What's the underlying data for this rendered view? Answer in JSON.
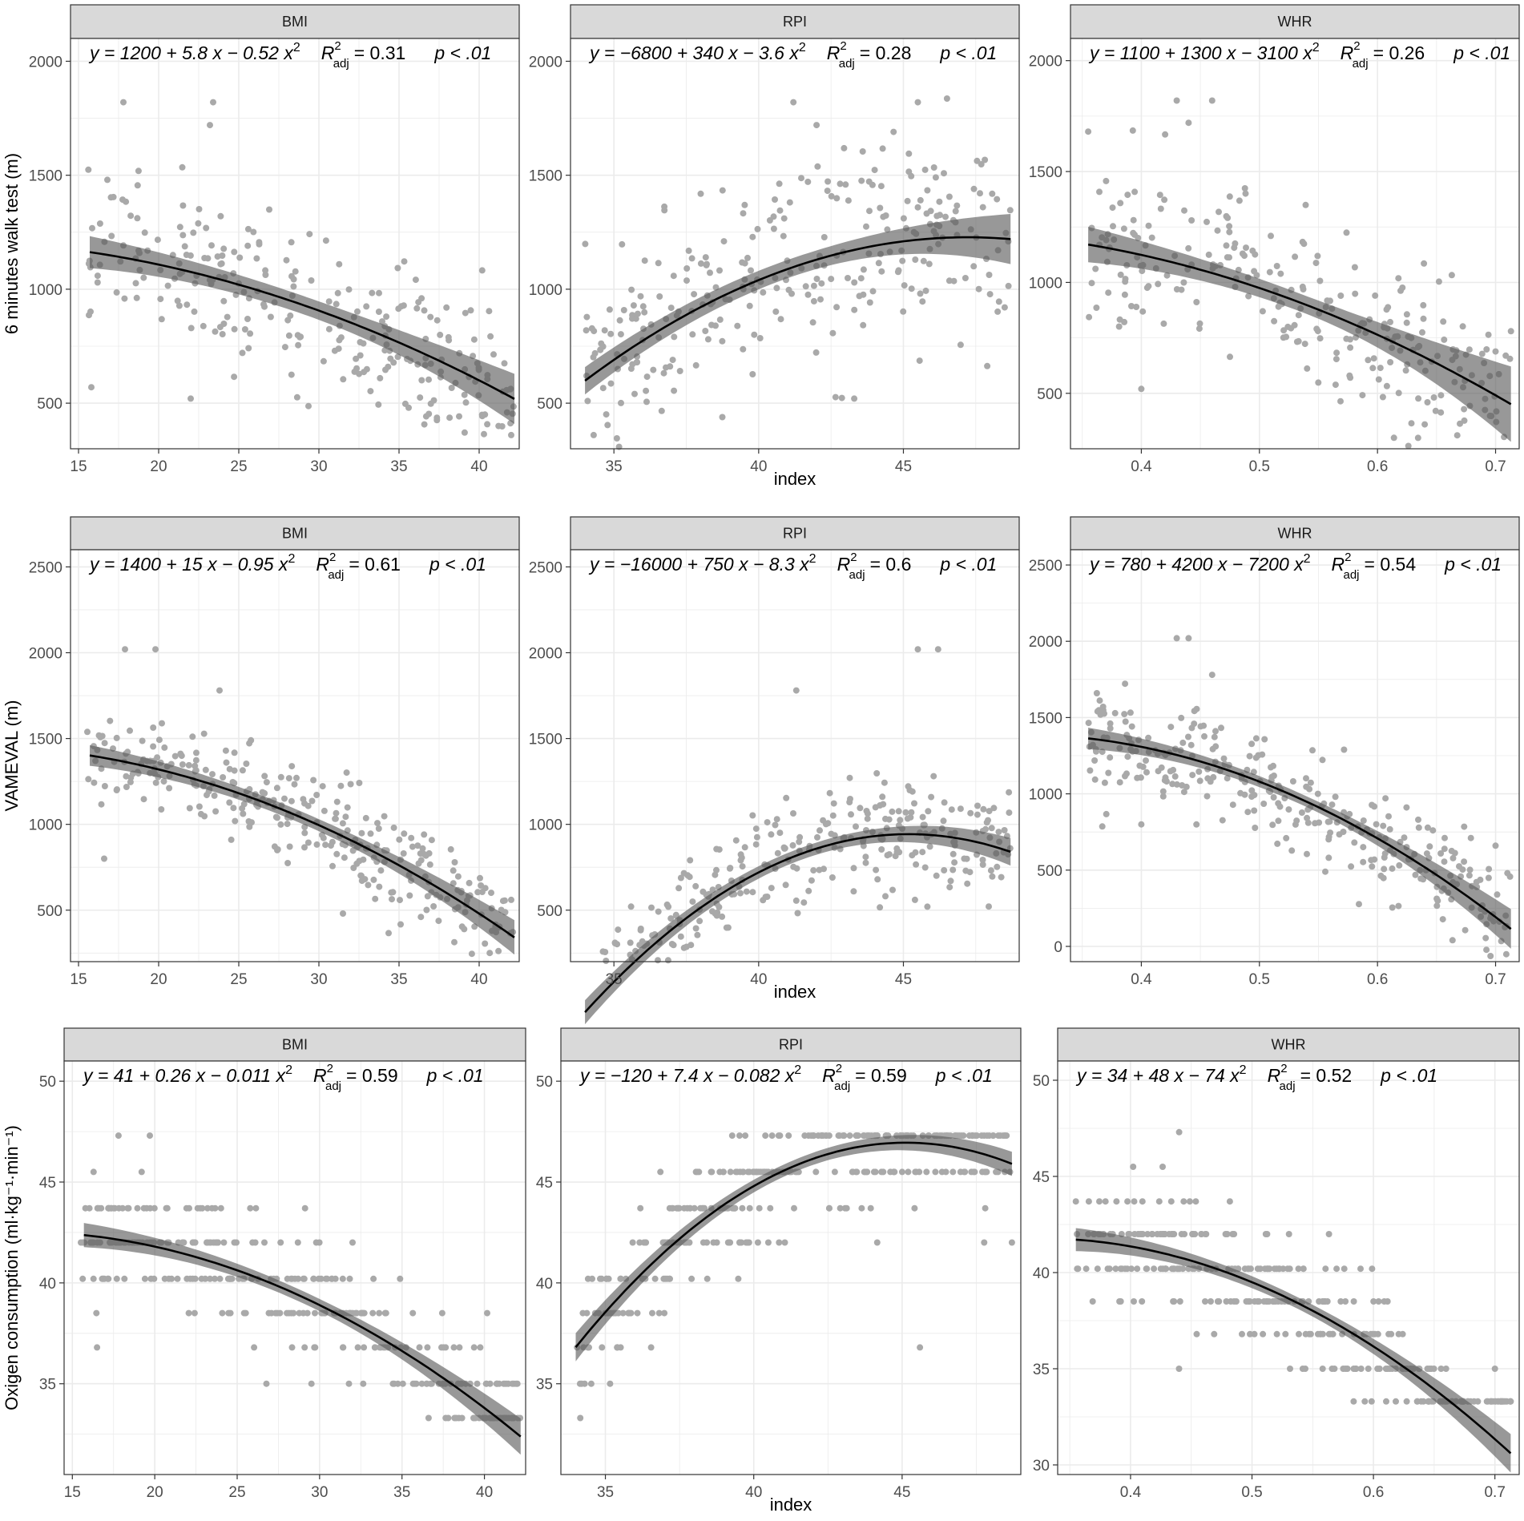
{
  "figure": {
    "xlabel": "index",
    "row_ylabels": [
      "6 minutes walk test (m)",
      "VAMEVAL (m)",
      "Oxigen consumption (ml·kg⁻¹·min⁻¹)"
    ]
  },
  "chart_data": [
    {
      "type": "scatter",
      "panel": "BMI",
      "ylabel": "6 minutes walk test (m)",
      "xlabel": "",
      "xlim": [
        14.5,
        42.5
      ],
      "ylim": [
        300,
        2100
      ],
      "xticks": [
        15,
        20,
        25,
        30,
        35,
        40
      ],
      "yticks": [
        500,
        1000,
        1500,
        2000
      ],
      "equation": {
        "lhs": "y = 1200 + 5.8 x − 0.52 x",
        "rsq": "= 0.31",
        "p": "p < .01"
      },
      "fit": {
        "coef": [
          1200,
          5.8,
          -0.52
        ],
        "x_range": [
          15.7,
          42.2
        ],
        "band": [
          70,
          40,
          110
        ]
      },
      "points": {
        "x_range": [
          15.5,
          42.2
        ],
        "spread": 170,
        "count": 260,
        "outliers": [
          [
            17.8,
            1820
          ],
          [
            23.4,
            1820
          ],
          [
            23.2,
            1720
          ],
          [
            16.8,
            1480
          ],
          [
            42.0,
            360
          ],
          [
            35.6,
            480
          ],
          [
            22.0,
            520
          ]
        ]
      }
    },
    {
      "type": "scatter",
      "panel": "RPI",
      "ylabel": "",
      "xlabel": "index",
      "xlim": [
        33.5,
        49
      ],
      "ylim": [
        300,
        2100
      ],
      "xticks": [
        35,
        40,
        45
      ],
      "yticks": [
        500,
        1000,
        1500,
        2000
      ],
      "equation": {
        "lhs": "y = −6800 + 340 x − 3.6 x",
        "rsq": "= 0.28",
        "p": "p < .01"
      },
      "fit": {
        "coef": [
          -6800,
          340,
          -3.6
        ],
        "x_range": [
          34,
          48.7
        ],
        "band": [
          60,
          40,
          110
        ]
      },
      "points": {
        "x_range": [
          34,
          48.7
        ],
        "spread": 220,
        "count": 280,
        "outliers": [
          [
            41.2,
            1820
          ],
          [
            45.5,
            1820
          ],
          [
            42.0,
            1720
          ],
          [
            34.3,
            360
          ],
          [
            43.3,
            520
          ],
          [
            48.5,
            920
          ]
        ]
      }
    },
    {
      "type": "scatter",
      "panel": "WHR",
      "ylabel": "",
      "xlabel": "",
      "xlim": [
        0.34,
        0.72
      ],
      "ylim": [
        250,
        2100
      ],
      "xticks": [
        0.4,
        0.5,
        0.6,
        0.7
      ],
      "yticks": [
        500,
        1000,
        1500,
        2000
      ],
      "equation": {
        "lhs": "y = 1100 + 1300 x − 3100 x",
        "rsq": "= 0.26",
        "p": "p < .01"
      },
      "fit": {
        "coef": [
          1100,
          1300,
          -3100
        ],
        "x_range": [
          0.355,
          0.713
        ],
        "band": [
          80,
          40,
          170
        ]
      },
      "points": {
        "x_range": [
          0.355,
          0.713
        ],
        "spread": 180,
        "count": 260,
        "outliers": [
          [
            0.43,
            1820
          ],
          [
            0.46,
            1820
          ],
          [
            0.44,
            1720
          ],
          [
            0.355,
            1680
          ],
          [
            0.64,
            360
          ],
          [
            0.4,
            520
          ],
          [
            0.713,
            780
          ]
        ]
      }
    },
    {
      "type": "scatter",
      "panel": "BMI",
      "ylabel": "VAMEVAL (m)",
      "xlabel": "",
      "xlim": [
        14.5,
        42.5
      ],
      "ylim": [
        200,
        2600
      ],
      "xticks": [
        15,
        20,
        25,
        30,
        35,
        40
      ],
      "yticks": [
        500,
        1000,
        1500,
        2000,
        2500
      ],
      "equation": {
        "lhs": "y = 1400 + 15 x − 0.95 x",
        "rsq": "= 0.61",
        "p": "p < .01"
      },
      "fit": {
        "coef": [
          1400,
          15,
          -0.95
        ],
        "x_range": [
          15.7,
          42.2
        ],
        "band": [
          60,
          35,
          100
        ]
      },
      "points": {
        "x_range": [
          15.5,
          42.2
        ],
        "spread": 150,
        "count": 300,
        "outliers": [
          [
            17.9,
            2020
          ],
          [
            19.8,
            2020
          ],
          [
            23.8,
            1780
          ],
          [
            16.6,
            800
          ],
          [
            31.5,
            480
          ],
          [
            42.0,
            560
          ]
        ]
      }
    },
    {
      "type": "scatter",
      "panel": "RPI",
      "ylabel": "",
      "xlabel": "index",
      "xlim": [
        33.5,
        49
      ],
      "ylim": [
        200,
        2600
      ],
      "xticks": [
        35,
        40,
        45
      ],
      "yticks": [
        500,
        1000,
        1500,
        2000,
        2500
      ],
      "equation": {
        "lhs": "y = −16000 + 750 x − 8.3 x",
        "rsq": "= 0.6",
        "p": "p < .01"
      },
      "fit": {
        "coef": [
          -16000,
          750,
          -8.3
        ],
        "x_range": [
          34,
          48.7
        ],
        "band": [
          70,
          35,
          80
        ]
      },
      "points": {
        "x_range": [
          34,
          48.7
        ],
        "spread": 160,
        "count": 300,
        "outliers": [
          [
            45.5,
            2020
          ],
          [
            46.2,
            2020
          ],
          [
            41.3,
            1780
          ],
          [
            38.5,
            480
          ],
          [
            47.1,
            800
          ],
          [
            45.3,
            820
          ]
        ]
      }
    },
    {
      "type": "scatter",
      "panel": "WHR",
      "ylabel": "",
      "xlabel": "",
      "xlim": [
        0.34,
        0.72
      ],
      "ylim": [
        -100,
        2600
      ],
      "xticks": [
        0.4,
        0.5,
        0.6,
        0.7
      ],
      "yticks": [
        0,
        500,
        1000,
        1500,
        2000,
        2500
      ],
      "equation": {
        "lhs": "y = 780 + 4200 x − 7200 x",
        "rsq": "= 0.54",
        "p": "p < .01"
      },
      "fit": {
        "coef": [
          780,
          4200,
          -7200
        ],
        "x_range": [
          0.355,
          0.713
        ],
        "band": [
          70,
          35,
          130
        ]
      },
      "points": {
        "x_range": [
          0.355,
          0.713
        ],
        "spread": 170,
        "count": 300,
        "outliers": [
          [
            0.43,
            2020
          ],
          [
            0.44,
            2020
          ],
          [
            0.46,
            1780
          ],
          [
            0.71,
            480
          ],
          [
            0.7,
            660
          ],
          [
            0.4,
            800
          ]
        ]
      }
    },
    {
      "type": "scatter",
      "panel": "BMI",
      "ylabel": "Oxigen consumption (ml·kg⁻¹·min⁻¹)",
      "xlabel": "",
      "xlim": [
        14.5,
        42.5
      ],
      "ylim": [
        30.5,
        51
      ],
      "xticks": [
        15,
        20,
        25,
        30,
        35,
        40
      ],
      "yticks": [
        35,
        40,
        45,
        50
      ],
      "equation": {
        "lhs": "y = 41 + 0.26 x − 0.011 x",
        "rsq": "= 0.59",
        "p": "p < .01"
      },
      "fit": {
        "coef": [
          41,
          0.26,
          -0.011
        ],
        "x_range": [
          15.7,
          42.2
        ],
        "band": [
          0.6,
          0.3,
          0.9
        ]
      },
      "points": {
        "x_range": [
          15.5,
          42.2
        ],
        "spread": 1.6,
        "count": 320,
        "levels": [
          33.3,
          35.0,
          36.8,
          38.5,
          40.2,
          42.0,
          43.7,
          45.5,
          47.3
        ],
        "outliers": [
          [
            17.8,
            47.3
          ],
          [
            19.7,
            47.3
          ],
          [
            16.5,
            36.8
          ],
          [
            32.0,
            42.0
          ],
          [
            42.0,
            35.0
          ]
        ]
      }
    },
    {
      "type": "scatter",
      "panel": "RPI",
      "ylabel": "",
      "xlabel": "index",
      "xlim": [
        33.5,
        49
      ],
      "ylim": [
        30.5,
        51
      ],
      "xticks": [
        35,
        40,
        45
      ],
      "yticks": [
        35,
        40,
        45,
        50
      ],
      "equation": {
        "lhs": "y = −120 + 7.4 x − 0.082 x",
        "rsq": "= 0.59",
        "p": "p < .01"
      },
      "fit": {
        "coef": [
          -120,
          7.4,
          -0.082
        ],
        "x_range": [
          34,
          48.7
        ],
        "band": [
          0.7,
          0.3,
          0.6
        ]
      },
      "points": {
        "x_range": [
          34,
          48.7
        ],
        "spread": 1.6,
        "count": 320,
        "levels": [
          33.3,
          35.0,
          36.8,
          38.5,
          40.2,
          42.0,
          43.7,
          45.5,
          47.3
        ],
        "outliers": [
          [
            45.3,
            47.3
          ],
          [
            45.9,
            47.3
          ],
          [
            34.2,
            35.0
          ],
          [
            45.6,
            36.8
          ],
          [
            48.7,
            42.0
          ]
        ]
      }
    },
    {
      "type": "scatter",
      "panel": "WHR",
      "ylabel": "",
      "xlabel": "",
      "xlim": [
        0.34,
        0.72
      ],
      "ylim": [
        29.5,
        51
      ],
      "xticks": [
        0.4,
        0.5,
        0.6,
        0.7
      ],
      "yticks": [
        30,
        35,
        40,
        45,
        50
      ],
      "equation": {
        "lhs": "y = 34 + 48 x − 74 x",
        "rsq": "= 0.52",
        "p": "p < .01"
      },
      "fit": {
        "coef": [
          34,
          48,
          -74
        ],
        "x_range": [
          0.355,
          0.713
        ],
        "band": [
          0.6,
          0.3,
          1.0
        ]
      },
      "points": {
        "x_range": [
          0.355,
          0.713
        ],
        "spread": 1.6,
        "count": 320,
        "levels": [
          33.3,
          35.0,
          36.8,
          38.5,
          40.2,
          42.0,
          43.7,
          45.5,
          47.3
        ],
        "outliers": [
          [
            0.44,
            47.3
          ],
          [
            0.355,
            43.7
          ],
          [
            0.713,
            33.3
          ],
          [
            0.7,
            35.0
          ]
        ]
      }
    }
  ]
}
